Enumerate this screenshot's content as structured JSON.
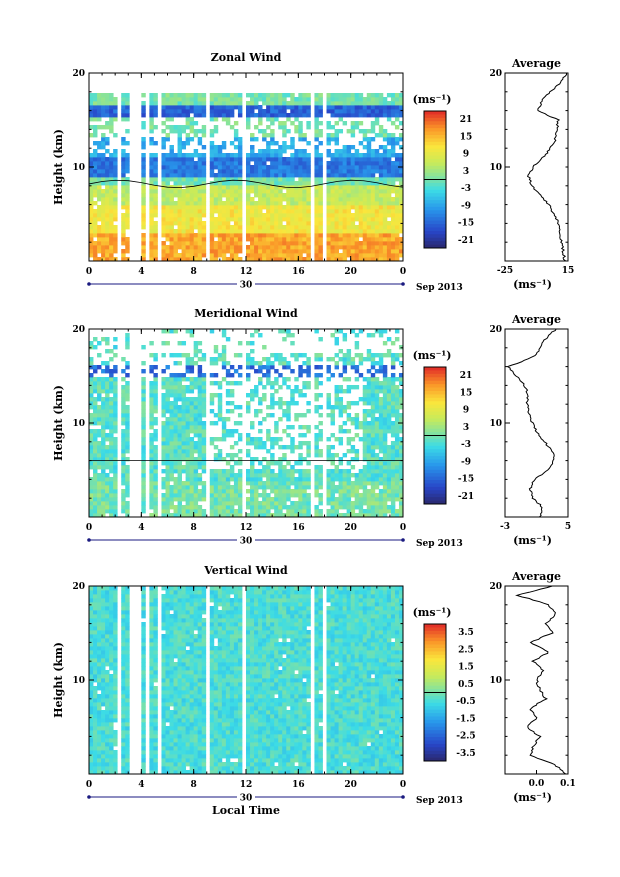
{
  "chart_data": [
    {
      "type": "heatmap",
      "title": "Zonal Wind",
      "ylabel": "Height (km)",
      "unit": "(ms⁻¹)",
      "xticks": [
        "0",
        "4",
        "8",
        "12",
        "16",
        "20",
        "0"
      ],
      "yticks": [
        "10",
        "20"
      ],
      "date_mark": "30",
      "date_label": "Sep 2013",
      "colorbar_ticks": [
        "21",
        "15",
        "9",
        "3",
        "-3",
        "-9",
        "-15",
        "-21"
      ],
      "ylim": [
        0,
        20
      ],
      "xlim": [
        0,
        24
      ],
      "profile": {
        "title": "Average",
        "xtick_labels": [
          "-25",
          "15"
        ],
        "xlim": [
          -25,
          15
        ],
        "xlabel": "(ms⁻¹)",
        "yticks": [
          "10",
          "20"
        ],
        "y": [
          0,
          1,
          2,
          3,
          4,
          5,
          6,
          7,
          8,
          9,
          10,
          11,
          12,
          13,
          14,
          15,
          16,
          17,
          18,
          19,
          20
        ],
        "values": [
          13,
          12,
          11,
          10,
          9,
          6,
          3,
          -3,
          -8,
          -10,
          -7,
          -1,
          4,
          7,
          8,
          9,
          -4,
          -2,
          4,
          10,
          14
        ]
      }
    },
    {
      "type": "heatmap",
      "title": "Meridional Wind",
      "ylabel": "Height (km)",
      "unit": "(ms⁻¹)",
      "xticks": [
        "0",
        "4",
        "8",
        "12",
        "16",
        "20",
        "0"
      ],
      "yticks": [
        "10",
        "20"
      ],
      "date_mark": "30",
      "date_label": "Sep 2013",
      "colorbar_ticks": [
        "21",
        "15",
        "9",
        "3",
        "-3",
        "-9",
        "-15",
        "-21"
      ],
      "ylim": [
        0,
        20
      ],
      "xlim": [
        0,
        24
      ],
      "profile": {
        "title": "Average",
        "xtick_labels": [
          "-3",
          "5"
        ],
        "xlim": [
          -3,
          5
        ],
        "xlabel": "(ms⁻¹)",
        "yticks": [
          "10",
          "20"
        ],
        "y": [
          0,
          1,
          2,
          3,
          4,
          5,
          6,
          7,
          8,
          9,
          10,
          11,
          12,
          13,
          14,
          15,
          16,
          17,
          18,
          19,
          20
        ],
        "values": [
          1.5,
          1.8,
          0.6,
          0.2,
          0.7,
          2.5,
          3.2,
          3.0,
          2.0,
          1.0,
          0.5,
          0,
          -0.2,
          0,
          -0.5,
          -1.5,
          -2.6,
          0.5,
          1.5,
          2.2,
          3.5
        ]
      }
    },
    {
      "type": "heatmap",
      "title": "Vertical Wind",
      "ylabel": "Height (km)",
      "xlabel": "Local Time",
      "unit": "(ms⁻¹)",
      "xticks": [
        "0",
        "4",
        "8",
        "12",
        "16",
        "20",
        "0"
      ],
      "yticks": [
        "10",
        "20"
      ],
      "date_mark": "30",
      "date_label": "Sep 2013",
      "colorbar_ticks": [
        "3.5",
        "2.5",
        "1.5",
        "0.5",
        "-0.5",
        "-1.5",
        "-2.5",
        "-3.5"
      ],
      "ylim": [
        0,
        20
      ],
      "xlim": [
        0,
        24
      ],
      "profile": {
        "title": "Average",
        "xtick_labels": [
          "0.0",
          "0.1"
        ],
        "xlim": [
          -0.1,
          0.1
        ],
        "xlabel": "(ms⁻¹)",
        "yticks": [
          "10",
          "20"
        ],
        "y": [
          0,
          1,
          2,
          3,
          4,
          5,
          6,
          7,
          8,
          9,
          10,
          11,
          12,
          13,
          14,
          15,
          16,
          17,
          18,
          19,
          20
        ],
        "values": [
          0.09,
          0.06,
          -0.02,
          -0.01,
          0.01,
          -0.03,
          0.0,
          -0.02,
          0.03,
          0.01,
          0.0,
          0.02,
          -0.01,
          0.04,
          -0.02,
          0.05,
          0.03,
          0.06,
          0.04,
          -0.06,
          0.05
        ]
      }
    }
  ]
}
